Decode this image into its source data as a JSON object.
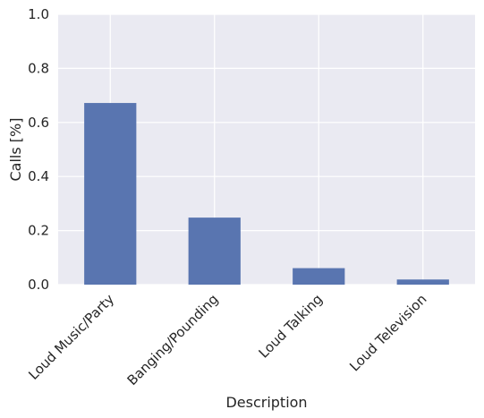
{
  "chart_data": {
    "type": "bar",
    "categories": [
      "Loud Music/Party",
      "Banging/Pounding",
      "Loud Talking",
      "Loud Television"
    ],
    "values": [
      0.672,
      0.248,
      0.061,
      0.019
    ],
    "title": "",
    "xlabel": "Description",
    "ylabel": "Calls [%]",
    "ylim": [
      0,
      1.0
    ],
    "yticks": [
      "0.0",
      "0.2",
      "0.4",
      "0.6",
      "0.8",
      "1.0"
    ],
    "ytick_values": [
      0,
      0.2,
      0.4,
      0.6,
      0.8,
      1.0
    ],
    "grid": true,
    "colors": {
      "background": "#eaeaf2",
      "bar": "#5975b0",
      "grid": "#ffffff",
      "text": "#262626"
    }
  }
}
